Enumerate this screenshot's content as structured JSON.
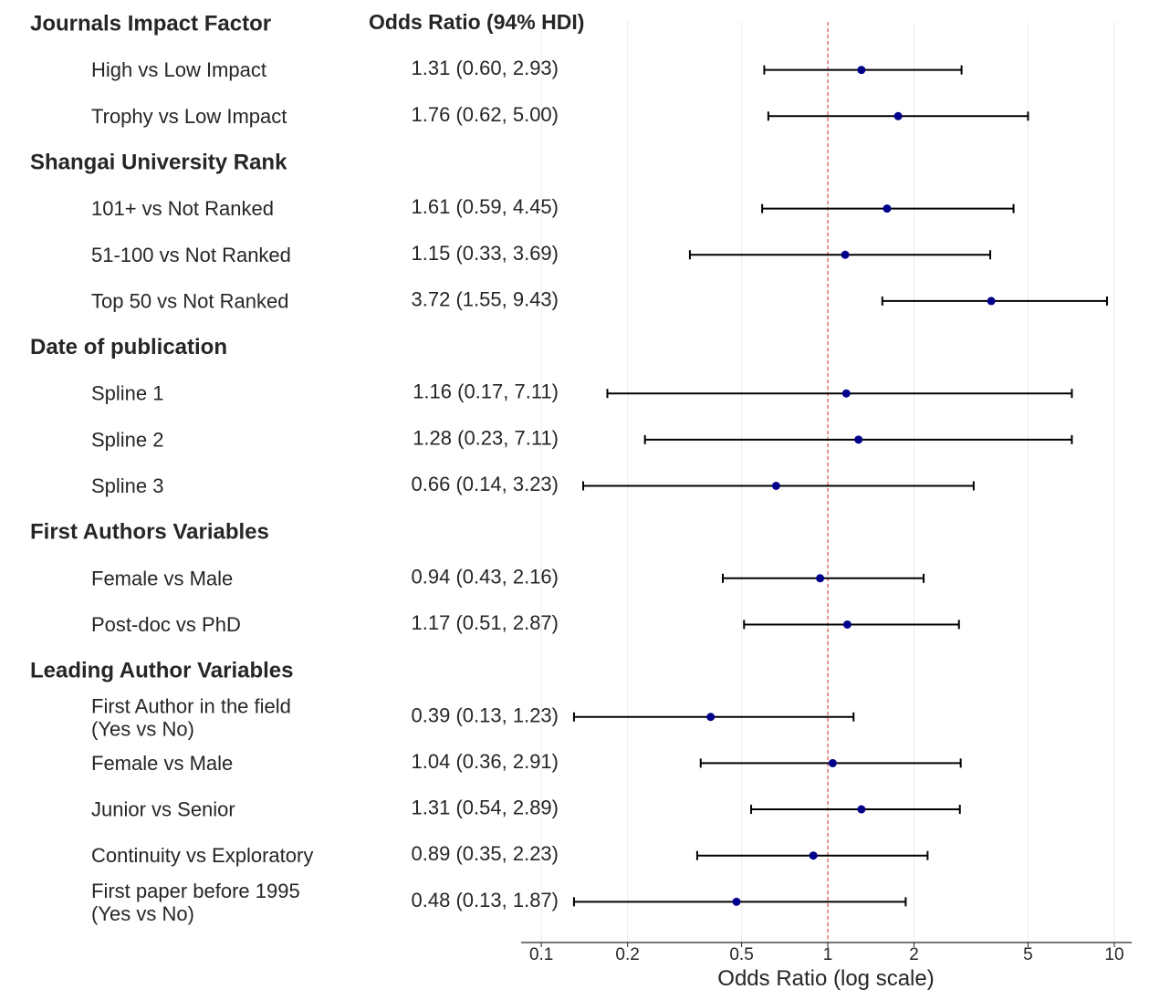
{
  "chart_data": {
    "type": "forest",
    "column_header": "Odds Ratio (94% HDI)",
    "xlabel": "Odds Ratio (log scale)",
    "x_scale": "log",
    "xlim": [
      0.085,
      11.5
    ],
    "reference_line": 1,
    "ticks": [
      {
        "value": 0.1,
        "label": "0.1"
      },
      {
        "value": 0.2,
        "label": "0.2"
      },
      {
        "value": 0.5,
        "label": "0.5"
      },
      {
        "value": 1,
        "label": "1"
      },
      {
        "value": 2,
        "label": "2"
      },
      {
        "value": 5,
        "label": "5"
      },
      {
        "value": 10,
        "label": "10"
      }
    ],
    "colors": {
      "point": "#00008b",
      "whisker": "#000000",
      "reference": "#e8595a",
      "grid": "#ececec",
      "axis": "#262626"
    },
    "groups": [
      {
        "title": "Journals Impact Factor",
        "rows": [
          {
            "label": [
              "High vs Low Impact"
            ],
            "or": 1.31,
            "low": 0.6,
            "high": 2.93,
            "text": "1.31 (0.60, 2.93)"
          },
          {
            "label": [
              "Trophy vs Low Impact"
            ],
            "or": 1.76,
            "low": 0.62,
            "high": 5.0,
            "text": "1.76 (0.62, 5.00)"
          }
        ]
      },
      {
        "title": "Shangai University Rank",
        "rows": [
          {
            "label": [
              "101+ vs Not Ranked"
            ],
            "or": 1.61,
            "low": 0.59,
            "high": 4.45,
            "text": "1.61 (0.59, 4.45)"
          },
          {
            "label": [
              "51-100 vs Not Ranked"
            ],
            "or": 1.15,
            "low": 0.33,
            "high": 3.69,
            "text": "1.15 (0.33, 3.69)"
          },
          {
            "label": [
              "Top 50 vs Not Ranked"
            ],
            "or": 3.72,
            "low": 1.55,
            "high": 9.43,
            "text": "3.72 (1.55, 9.43)"
          }
        ]
      },
      {
        "title": "Date of publication",
        "rows": [
          {
            "label": [
              "Spline 1"
            ],
            "or": 1.16,
            "low": 0.17,
            "high": 7.11,
            "text": "1.16 (0.17, 7.11)"
          },
          {
            "label": [
              "Spline 2"
            ],
            "or": 1.28,
            "low": 0.23,
            "high": 7.11,
            "text": "1.28 (0.23, 7.11)"
          },
          {
            "label": [
              "Spline 3"
            ],
            "or": 0.66,
            "low": 0.14,
            "high": 3.23,
            "text": "0.66 (0.14, 3.23)"
          }
        ]
      },
      {
        "title": "First Authors Variables",
        "rows": [
          {
            "label": [
              "Female vs Male"
            ],
            "or": 0.94,
            "low": 0.43,
            "high": 2.16,
            "text": "0.94 (0.43, 2.16)"
          },
          {
            "label": [
              "Post-doc vs PhD"
            ],
            "or": 1.17,
            "low": 0.51,
            "high": 2.87,
            "text": "1.17 (0.51, 2.87)"
          }
        ]
      },
      {
        "title": "Leading Author Variables",
        "rows": [
          {
            "label": [
              "First Author in the field",
              "(Yes vs No)"
            ],
            "or": 0.39,
            "low": 0.13,
            "high": 1.23,
            "text": "0.39 (0.13, 1.23)"
          },
          {
            "label": [
              "Female vs Male"
            ],
            "or": 1.04,
            "low": 0.36,
            "high": 2.91,
            "text": "1.04 (0.36, 2.91)"
          },
          {
            "label": [
              "Junior vs Senior"
            ],
            "or": 1.31,
            "low": 0.54,
            "high": 2.89,
            "text": "1.31 (0.54, 2.89)"
          },
          {
            "label": [
              "Continuity vs Exploratory"
            ],
            "or": 0.89,
            "low": 0.35,
            "high": 2.23,
            "text": "0.89 (0.35, 2.23)"
          },
          {
            "label": [
              "First paper before 1995",
              "(Yes vs No)"
            ],
            "or": 0.48,
            "low": 0.13,
            "high": 1.87,
            "text": "0.48 (0.13, 1.87)"
          }
        ]
      }
    ]
  }
}
